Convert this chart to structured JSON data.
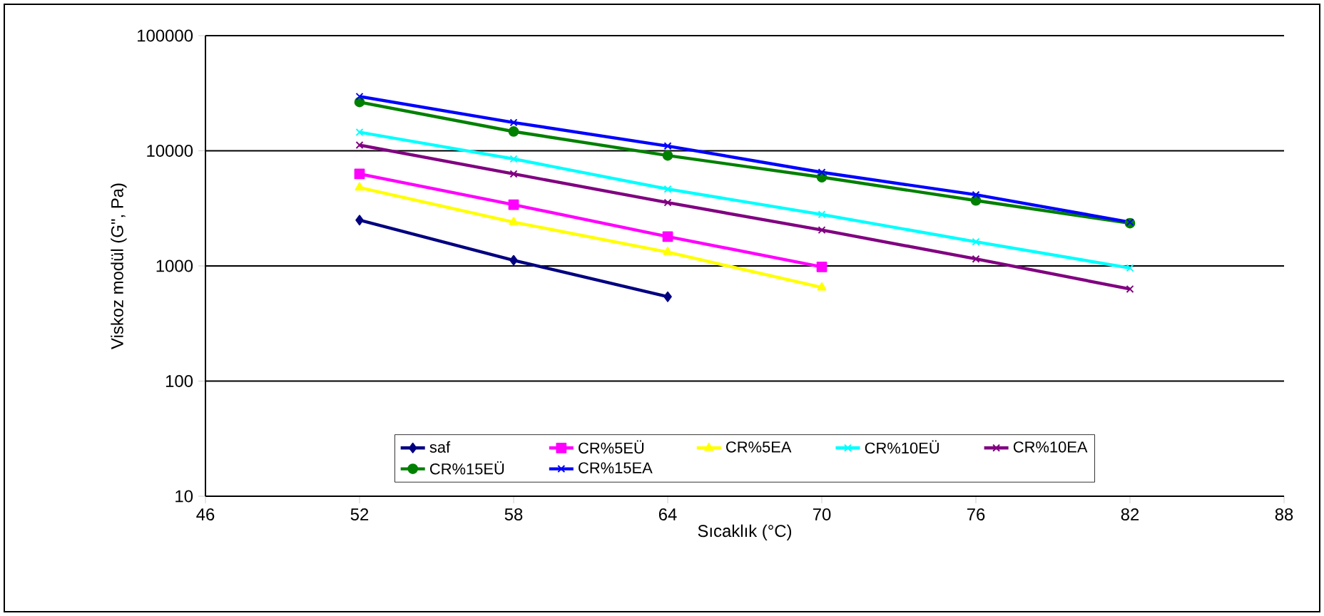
{
  "chart_data": {
    "type": "line",
    "xlabel": "Sıcaklık (°C)",
    "ylabel": "Viskoz modül (G\", Pa)",
    "x": [
      52,
      58,
      64,
      70,
      76,
      82
    ],
    "series": [
      {
        "name": "saf",
        "color": "#000080",
        "marker": "diamond",
        "values": [
          2500,
          1120,
          540,
          null,
          null,
          null
        ]
      },
      {
        "name": "CR%5EÜ",
        "color": "#ff00ff",
        "marker": "square",
        "values": [
          6300,
          3400,
          1800,
          980,
          null,
          null
        ]
      },
      {
        "name": "CR%5EA",
        "color": "#ffff00",
        "marker": "triangle",
        "values": [
          4800,
          2400,
          1320,
          650,
          null,
          null
        ]
      },
      {
        "name": "CR%10EÜ",
        "color": "#00ffff",
        "marker": "cross",
        "values": [
          14500,
          8500,
          4650,
          2800,
          1620,
          960
        ]
      },
      {
        "name": "CR%10EA",
        "color": "#800080",
        "marker": "cross",
        "values": [
          11200,
          6300,
          3550,
          2050,
          1150,
          630
        ]
      },
      {
        "name": "CR%15EÜ",
        "color": "#008000",
        "marker": "circle",
        "values": [
          26500,
          14700,
          9100,
          5900,
          3700,
          2350
        ]
      },
      {
        "name": "CR%15EA",
        "color": "#0000ff",
        "marker": "cross",
        "values": [
          29600,
          17600,
          11000,
          6500,
          4150,
          2400
        ]
      }
    ],
    "xlim": [
      46,
      88
    ],
    "xticks": [
      46,
      52,
      58,
      64,
      70,
      76,
      82,
      88
    ],
    "ylim": [
      10,
      100000
    ],
    "yticks": [
      10,
      100,
      1000,
      10000,
      100000
    ],
    "log": "y",
    "grid": "y",
    "legend": "bottom",
    "line_style": "solid"
  }
}
